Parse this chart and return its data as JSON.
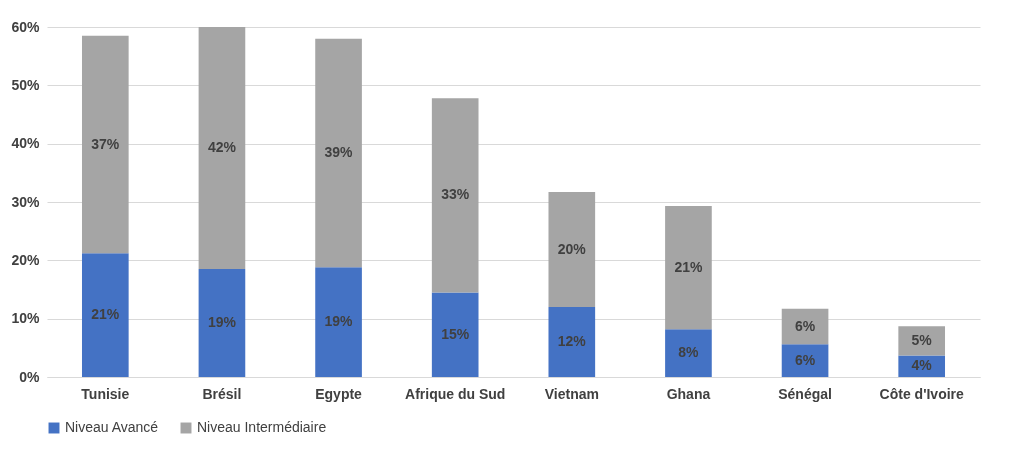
{
  "chart_data": {
    "type": "bar",
    "stacked": true,
    "categories": [
      "Tunisie",
      "Brésil",
      "Egypte",
      "Afrique du Sud",
      "Vietnam",
      "Ghana",
      "Sénégal",
      "Côte d'Ivoire"
    ],
    "series": [
      {
        "name": "Niveau Avancé",
        "color": "#4472c4",
        "values": [
          21.2,
          18.5,
          18.8,
          14.5,
          12.0,
          8.2,
          5.6,
          3.7
        ],
        "value_labels": [
          "21%",
          "19%",
          "19%",
          "15%",
          "12%",
          "8%",
          "6%",
          "4%"
        ]
      },
      {
        "name": "Niveau Intermédiaire",
        "color": "#a5a5a5",
        "values": [
          37.3,
          41.5,
          39.2,
          33.3,
          19.7,
          21.1,
          6.1,
          5.0
        ],
        "value_labels": [
          "37%",
          "42%",
          "39%",
          "33%",
          "20%",
          "21%",
          "6%",
          "5%"
        ]
      }
    ],
    "ylim": [
      0,
      60
    ],
    "yticks": [
      {
        "value": 0,
        "label": "0%"
      },
      {
        "value": 10,
        "label": "10%"
      },
      {
        "value": 20,
        "label": "20%"
      },
      {
        "value": 30,
        "label": "30%"
      },
      {
        "value": 40,
        "label": "40%"
      },
      {
        "value": 50,
        "label": "50%"
      },
      {
        "value": 60,
        "label": "60%"
      }
    ],
    "grid": "y",
    "legend": "bottom"
  }
}
